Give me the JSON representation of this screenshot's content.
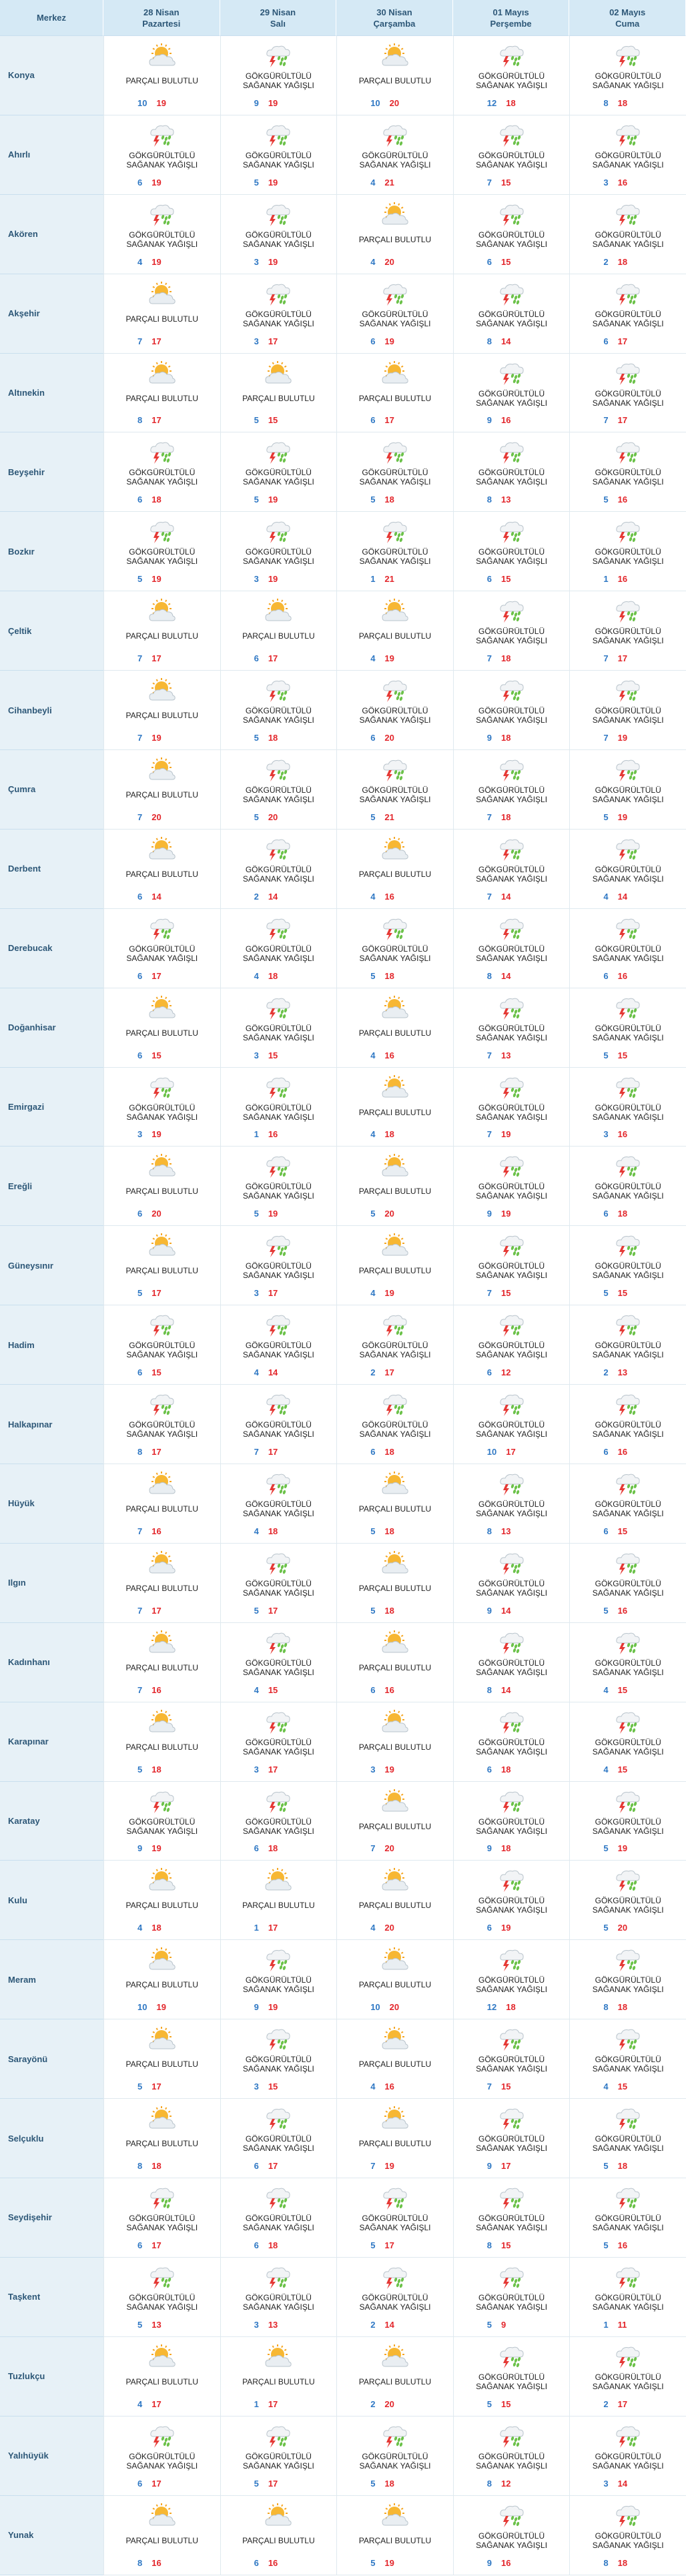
{
  "header": {
    "station": "Merkez",
    "days": [
      {
        "date": "28 Nisan",
        "weekday": "Pazartesi"
      },
      {
        "date": "29 Nisan",
        "weekday": "Salı"
      },
      {
        "date": "30 Nisan",
        "weekday": "Çarşamba"
      },
      {
        "date": "01 Mayıs",
        "weekday": "Perşembe"
      },
      {
        "date": "02 Mayıs",
        "weekday": "Cuma"
      }
    ]
  },
  "conditions": [
    "PARÇALI BULUTLU",
    "GÖKGÜRÜLTÜLÜ SAĞANAK YAĞIŞLI"
  ],
  "rows": [
    {
      "city": "Konya",
      "days": [
        {
          "c": 0,
          "min": 10,
          "max": 19
        },
        {
          "c": 1,
          "min": 9,
          "max": 19
        },
        {
          "c": 0,
          "min": 10,
          "max": 20
        },
        {
          "c": 1,
          "min": 12,
          "max": 18
        },
        {
          "c": 1,
          "min": 8,
          "max": 18
        }
      ]
    },
    {
      "city": "Ahırlı",
      "days": [
        {
          "c": 1,
          "min": 6,
          "max": 19
        },
        {
          "c": 1,
          "min": 5,
          "max": 19
        },
        {
          "c": 1,
          "min": 4,
          "max": 21
        },
        {
          "c": 1,
          "min": 7,
          "max": 15
        },
        {
          "c": 1,
          "min": 3,
          "max": 16
        }
      ]
    },
    {
      "city": "Akören",
      "days": [
        {
          "c": 1,
          "min": 4,
          "max": 19
        },
        {
          "c": 1,
          "min": 3,
          "max": 19
        },
        {
          "c": 0,
          "min": 4,
          "max": 20
        },
        {
          "c": 1,
          "min": 6,
          "max": 15
        },
        {
          "c": 1,
          "min": 2,
          "max": 18
        }
      ]
    },
    {
      "city": "Akşehir",
      "days": [
        {
          "c": 0,
          "min": 7,
          "max": 17
        },
        {
          "c": 1,
          "min": 3,
          "max": 17
        },
        {
          "c": 1,
          "min": 6,
          "max": 19
        },
        {
          "c": 1,
          "min": 8,
          "max": 14
        },
        {
          "c": 1,
          "min": 6,
          "max": 17
        }
      ]
    },
    {
      "city": "Altınekin",
      "days": [
        {
          "c": 0,
          "min": 8,
          "max": 17
        },
        {
          "c": 0,
          "min": 5,
          "max": 15
        },
        {
          "c": 0,
          "min": 6,
          "max": 17
        },
        {
          "c": 1,
          "min": 9,
          "max": 16
        },
        {
          "c": 1,
          "min": 7,
          "max": 17
        }
      ]
    },
    {
      "city": "Beyşehir",
      "days": [
        {
          "c": 1,
          "min": 6,
          "max": 18
        },
        {
          "c": 1,
          "min": 5,
          "max": 19
        },
        {
          "c": 1,
          "min": 5,
          "max": 18
        },
        {
          "c": 1,
          "min": 8,
          "max": 13
        },
        {
          "c": 1,
          "min": 5,
          "max": 16
        }
      ]
    },
    {
      "city": "Bozkır",
      "days": [
        {
          "c": 1,
          "min": 5,
          "max": 19
        },
        {
          "c": 1,
          "min": 3,
          "max": 19
        },
        {
          "c": 1,
          "min": 1,
          "max": 21
        },
        {
          "c": 1,
          "min": 6,
          "max": 15
        },
        {
          "c": 1,
          "min": 1,
          "max": 16
        }
      ]
    },
    {
      "city": "Çeltik",
      "days": [
        {
          "c": 0,
          "min": 7,
          "max": 17
        },
        {
          "c": 0,
          "min": 6,
          "max": 17
        },
        {
          "c": 0,
          "min": 4,
          "max": 19
        },
        {
          "c": 1,
          "min": 7,
          "max": 18
        },
        {
          "c": 1,
          "min": 7,
          "max": 17
        }
      ]
    },
    {
      "city": "Cihanbeyli",
      "days": [
        {
          "c": 0,
          "min": 7,
          "max": 19
        },
        {
          "c": 1,
          "min": 5,
          "max": 18
        },
        {
          "c": 1,
          "min": 6,
          "max": 20
        },
        {
          "c": 1,
          "min": 9,
          "max": 18
        },
        {
          "c": 1,
          "min": 7,
          "max": 19
        }
      ]
    },
    {
      "city": "Çumra",
      "days": [
        {
          "c": 0,
          "min": 7,
          "max": 20
        },
        {
          "c": 1,
          "min": 5,
          "max": 20
        },
        {
          "c": 1,
          "min": 5,
          "max": 21
        },
        {
          "c": 1,
          "min": 7,
          "max": 18
        },
        {
          "c": 1,
          "min": 5,
          "max": 19
        }
      ]
    },
    {
      "city": "Derbent",
      "days": [
        {
          "c": 0,
          "min": 6,
          "max": 14
        },
        {
          "c": 1,
          "min": 2,
          "max": 14
        },
        {
          "c": 0,
          "min": 4,
          "max": 16
        },
        {
          "c": 1,
          "min": 7,
          "max": 14
        },
        {
          "c": 1,
          "min": 4,
          "max": 14
        }
      ]
    },
    {
      "city": "Derebucak",
      "days": [
        {
          "c": 1,
          "min": 6,
          "max": 17
        },
        {
          "c": 1,
          "min": 4,
          "max": 18
        },
        {
          "c": 1,
          "min": 5,
          "max": 18
        },
        {
          "c": 1,
          "min": 8,
          "max": 14
        },
        {
          "c": 1,
          "min": 6,
          "max": 16
        }
      ]
    },
    {
      "city": "Doğanhisar",
      "days": [
        {
          "c": 0,
          "min": 6,
          "max": 15
        },
        {
          "c": 1,
          "min": 3,
          "max": 15
        },
        {
          "c": 0,
          "min": 4,
          "max": 16
        },
        {
          "c": 1,
          "min": 7,
          "max": 13
        },
        {
          "c": 1,
          "min": 5,
          "max": 15
        }
      ]
    },
    {
      "city": "Emirgazi",
      "days": [
        {
          "c": 1,
          "min": 3,
          "max": 19
        },
        {
          "c": 1,
          "min": 1,
          "max": 16
        },
        {
          "c": 0,
          "min": 4,
          "max": 18
        },
        {
          "c": 1,
          "min": 7,
          "max": 19
        },
        {
          "c": 1,
          "min": 3,
          "max": 16
        }
      ]
    },
    {
      "city": "Ereğli",
      "days": [
        {
          "c": 0,
          "min": 6,
          "max": 20
        },
        {
          "c": 1,
          "min": 5,
          "max": 19
        },
        {
          "c": 0,
          "min": 5,
          "max": 20
        },
        {
          "c": 1,
          "min": 9,
          "max": 19
        },
        {
          "c": 1,
          "min": 6,
          "max": 18
        }
      ]
    },
    {
      "city": "Güneysınır",
      "days": [
        {
          "c": 0,
          "min": 5,
          "max": 17
        },
        {
          "c": 1,
          "min": 3,
          "max": 17
        },
        {
          "c": 0,
          "min": 4,
          "max": 19
        },
        {
          "c": 1,
          "min": 7,
          "max": 15
        },
        {
          "c": 1,
          "min": 5,
          "max": 15
        }
      ]
    },
    {
      "city": "Hadim",
      "days": [
        {
          "c": 1,
          "min": 6,
          "max": 15
        },
        {
          "c": 1,
          "min": 4,
          "max": 14
        },
        {
          "c": 1,
          "min": 2,
          "max": 17
        },
        {
          "c": 1,
          "min": 6,
          "max": 12
        },
        {
          "c": 1,
          "min": 2,
          "max": 13
        }
      ]
    },
    {
      "city": "Halkapınar",
      "days": [
        {
          "c": 1,
          "min": 8,
          "max": 17
        },
        {
          "c": 1,
          "min": 7,
          "max": 17
        },
        {
          "c": 1,
          "min": 6,
          "max": 18
        },
        {
          "c": 1,
          "min": 10,
          "max": 17
        },
        {
          "c": 1,
          "min": 6,
          "max": 16
        }
      ]
    },
    {
      "city": "Hüyük",
      "days": [
        {
          "c": 0,
          "min": 7,
          "max": 16
        },
        {
          "c": 1,
          "min": 4,
          "max": 18
        },
        {
          "c": 0,
          "min": 5,
          "max": 18
        },
        {
          "c": 1,
          "min": 8,
          "max": 13
        },
        {
          "c": 1,
          "min": 6,
          "max": 15
        }
      ]
    },
    {
      "city": "Ilgın",
      "days": [
        {
          "c": 0,
          "min": 7,
          "max": 17
        },
        {
          "c": 1,
          "min": 5,
          "max": 17
        },
        {
          "c": 0,
          "min": 5,
          "max": 18
        },
        {
          "c": 1,
          "min": 9,
          "max": 14
        },
        {
          "c": 1,
          "min": 5,
          "max": 16
        }
      ]
    },
    {
      "city": "Kadınhanı",
      "days": [
        {
          "c": 0,
          "min": 7,
          "max": 16
        },
        {
          "c": 1,
          "min": 4,
          "max": 15
        },
        {
          "c": 0,
          "min": 6,
          "max": 16
        },
        {
          "c": 1,
          "min": 8,
          "max": 14
        },
        {
          "c": 1,
          "min": 4,
          "max": 15
        }
      ]
    },
    {
      "city": "Karapınar",
      "days": [
        {
          "c": 0,
          "min": 5,
          "max": 18
        },
        {
          "c": 1,
          "min": 3,
          "max": 17
        },
        {
          "c": 0,
          "min": 3,
          "max": 19
        },
        {
          "c": 1,
          "min": 6,
          "max": 18
        },
        {
          "c": 1,
          "min": 4,
          "max": 15
        }
      ]
    },
    {
      "city": "Karatay",
      "days": [
        {
          "c": 1,
          "min": 9,
          "max": 19
        },
        {
          "c": 1,
          "min": 6,
          "max": 18
        },
        {
          "c": 0,
          "min": 7,
          "max": 20
        },
        {
          "c": 1,
          "min": 9,
          "max": 18
        },
        {
          "c": 1,
          "min": 5,
          "max": 19
        }
      ]
    },
    {
      "city": "Kulu",
      "days": [
        {
          "c": 0,
          "min": 4,
          "max": 18
        },
        {
          "c": 0,
          "min": 1,
          "max": 17
        },
        {
          "c": 0,
          "min": 4,
          "max": 20
        },
        {
          "c": 1,
          "min": 6,
          "max": 19
        },
        {
          "c": 1,
          "min": 5,
          "max": 20
        }
      ]
    },
    {
      "city": "Meram",
      "days": [
        {
          "c": 0,
          "min": 10,
          "max": 19
        },
        {
          "c": 1,
          "min": 9,
          "max": 19
        },
        {
          "c": 0,
          "min": 10,
          "max": 20
        },
        {
          "c": 1,
          "min": 12,
          "max": 18
        },
        {
          "c": 1,
          "min": 8,
          "max": 18
        }
      ]
    },
    {
      "city": "Sarayönü",
      "days": [
        {
          "c": 0,
          "min": 5,
          "max": 17
        },
        {
          "c": 1,
          "min": 3,
          "max": 15
        },
        {
          "c": 0,
          "min": 4,
          "max": 16
        },
        {
          "c": 1,
          "min": 7,
          "max": 15
        },
        {
          "c": 1,
          "min": 4,
          "max": 15
        }
      ]
    },
    {
      "city": "Selçuklu",
      "days": [
        {
          "c": 0,
          "min": 8,
          "max": 18
        },
        {
          "c": 1,
          "min": 6,
          "max": 17
        },
        {
          "c": 0,
          "min": 7,
          "max": 19
        },
        {
          "c": 1,
          "min": 9,
          "max": 17
        },
        {
          "c": 1,
          "min": 5,
          "max": 18
        }
      ]
    },
    {
      "city": "Seydişehir",
      "days": [
        {
          "c": 1,
          "min": 6,
          "max": 17
        },
        {
          "c": 1,
          "min": 6,
          "max": 18
        },
        {
          "c": 1,
          "min": 5,
          "max": 17
        },
        {
          "c": 1,
          "min": 8,
          "max": 15
        },
        {
          "c": 1,
          "min": 5,
          "max": 16
        }
      ]
    },
    {
      "city": "Taşkent",
      "days": [
        {
          "c": 1,
          "min": 5,
          "max": 13
        },
        {
          "c": 1,
          "min": 3,
          "max": 13
        },
        {
          "c": 1,
          "min": 2,
          "max": 14
        },
        {
          "c": 1,
          "min": 5,
          "max": 9
        },
        {
          "c": 1,
          "min": 1,
          "max": 11
        }
      ]
    },
    {
      "city": "Tuzlukçu",
      "days": [
        {
          "c": 0,
          "min": 4,
          "max": 17
        },
        {
          "c": 0,
          "min": 1,
          "max": 17
        },
        {
          "c": 0,
          "min": 2,
          "max": 20
        },
        {
          "c": 1,
          "min": 5,
          "max": 15
        },
        {
          "c": 1,
          "min": 2,
          "max": 17
        }
      ]
    },
    {
      "city": "Yalıhüyük",
      "days": [
        {
          "c": 1,
          "min": 6,
          "max": 17
        },
        {
          "c": 1,
          "min": 5,
          "max": 17
        },
        {
          "c": 1,
          "min": 5,
          "max": 18
        },
        {
          "c": 1,
          "min": 8,
          "max": 12
        },
        {
          "c": 1,
          "min": 3,
          "max": 14
        }
      ]
    },
    {
      "city": "Yunak",
      "days": [
        {
          "c": 0,
          "min": 8,
          "max": 16
        },
        {
          "c": 0,
          "min": 6,
          "max": 16
        },
        {
          "c": 0,
          "min": 5,
          "max": 19
        },
        {
          "c": 1,
          "min": 9,
          "max": 16
        },
        {
          "c": 1,
          "min": 8,
          "max": 18
        }
      ]
    }
  ]
}
